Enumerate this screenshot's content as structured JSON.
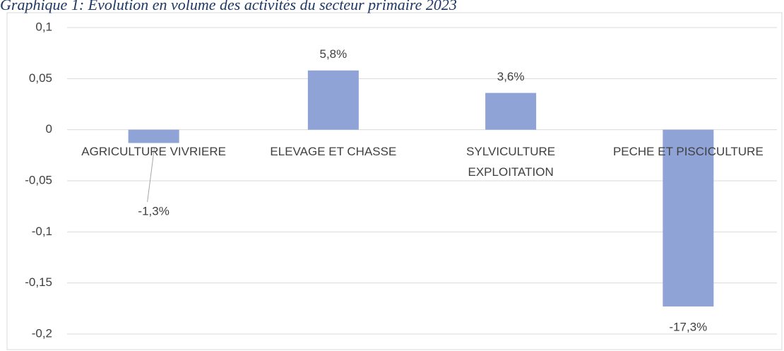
{
  "chart_data": {
    "type": "bar",
    "title": "Graphique 1: Evolution en volume des activités du secteur primaire 2023",
    "categories": [
      "AGRICULTURE VIVRIERE",
      "ELEVAGE ET CHASSE",
      "SYLVICULTURE EXPLOITATION",
      "PECHE ET PISCICULTURE"
    ],
    "values": [
      -0.013,
      0.058,
      0.036,
      -0.173
    ],
    "value_labels": [
      "-1,3%",
      "5,8%",
      "3,6%",
      "-17,3%"
    ],
    "color": "#8fa3d6",
    "ylim": [
      -0.2,
      0.1
    ],
    "yticks": [
      {
        "value": -0.2,
        "label": "-0,2"
      },
      {
        "value": -0.15,
        "label": "-0,15"
      },
      {
        "value": -0.1,
        "label": "-0,1"
      },
      {
        "value": -0.05,
        "label": "-0,05"
      },
      0,
      {
        "value": 0.05,
        "label": "0,05"
      },
      {
        "value": 0.1,
        "label": "0,1"
      }
    ],
    "grid": true
  }
}
